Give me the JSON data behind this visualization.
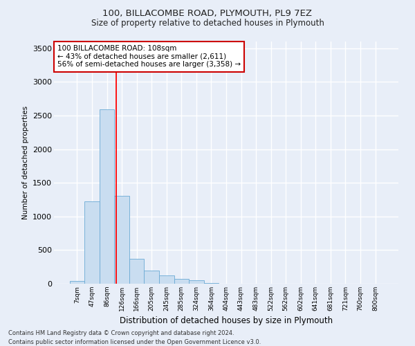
{
  "title1": "100, BILLACOMBE ROAD, PLYMOUTH, PL9 7EZ",
  "title2": "Size of property relative to detached houses in Plymouth",
  "xlabel": "Distribution of detached houses by size in Plymouth",
  "ylabel": "Number of detached properties",
  "bar_color": "#c9ddf0",
  "bar_edge_color": "#6aaad4",
  "categories": [
    "7sqm",
    "47sqm",
    "86sqm",
    "126sqm",
    "166sqm",
    "205sqm",
    "245sqm",
    "285sqm",
    "324sqm",
    "364sqm",
    "404sqm",
    "443sqm",
    "483sqm",
    "522sqm",
    "562sqm",
    "602sqm",
    "641sqm",
    "681sqm",
    "721sqm",
    "760sqm",
    "800sqm"
  ],
  "values": [
    40,
    1220,
    2590,
    1310,
    370,
    195,
    125,
    75,
    50,
    10,
    0,
    0,
    0,
    0,
    0,
    0,
    0,
    0,
    0,
    0,
    0
  ],
  "ylim": [
    0,
    3600
  ],
  "yticks": [
    0,
    500,
    1000,
    1500,
    2000,
    2500,
    3000,
    3500
  ],
  "property_line_x": 2.62,
  "annotation_text": "100 BILLACOMBE ROAD: 108sqm\n← 43% of detached houses are smaller (2,611)\n56% of semi-detached houses are larger (3,358) →",
  "annotation_box_color": "#ffffff",
  "annotation_box_edge": "#cc0000",
  "footer1": "Contains HM Land Registry data © Crown copyright and database right 2024.",
  "footer2": "Contains public sector information licensed under the Open Government Licence v3.0.",
  "background_color": "#e8eef8",
  "plot_background": "#e8eef8",
  "grid_color": "#ffffff"
}
